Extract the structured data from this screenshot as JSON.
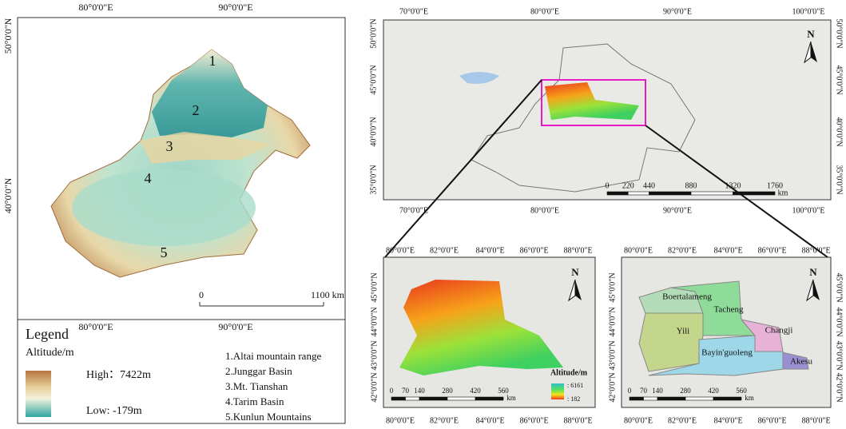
{
  "main_map": {
    "top_lon_labels": [
      "80°0'0\"E",
      "90°0'0\"E"
    ],
    "bottom_lon_labels": [
      "80°0'0\"E",
      "90°0'0\"E"
    ],
    "left_lat_labels": [
      "50°0'0\"N",
      "40°0'0\"N"
    ],
    "region_numbers": [
      "1",
      "2",
      "3",
      "4",
      "5"
    ],
    "scale_start": "0",
    "scale_end": "1100 km"
  },
  "legend": {
    "title": "Legend",
    "subtitle": "Altitude/m",
    "high": "High：7422m",
    "low": "Low: -179m",
    "items": [
      "1.Altai mountain range",
      "2.Junggar Basin",
      "3.Mt. Tianshan",
      "4.Tarim Basin",
      "5.Kunlun Mountains"
    ]
  },
  "overview_map": {
    "north": "N",
    "top_lon_labels": [
      "70°0'0\"E",
      "80°0'0\"E",
      "90°0'0\"E",
      "100°0'0\"E"
    ],
    "bottom_lon_labels": [
      "70°0'0\"E",
      "80°0'0\"E",
      "90°0'0\"E",
      "100°0'0\"E"
    ],
    "left_lat_labels": [
      "50°0'0\"N",
      "45°0'0\"N",
      "40°0'0\"N",
      "35°0'0\"N"
    ],
    "right_lat_labels": [
      "50°0'0\"N",
      "45°0'0\"N",
      "40°0'0\"N",
      "35°0'0\"N"
    ],
    "scale_ticks": [
      0,
      220,
      440,
      880,
      1320,
      1760
    ],
    "scale_unit": "km"
  },
  "altitude_map": {
    "north": "N",
    "top_lon_labels": [
      "80°0'0\"E",
      "82°0'0\"E",
      "84°0'0\"E",
      "86°0'0\"E",
      "88°0'0\"E"
    ],
    "bottom_lon_labels": [
      "80°0'0\"E",
      "82°0'0\"E",
      "84°0'0\"E",
      "86°0'0\"E",
      "88°0'0\"E"
    ],
    "left_lat_labels": [
      "45°0'0\"N",
      "44°0'0\"N",
      "43°0'0\"N",
      "42°0'0\"N"
    ],
    "legend_title": "Altitude/m",
    "legend_high": ": 6161",
    "legend_low": ": 182",
    "scale_ticks": [
      0,
      70,
      140,
      280,
      420,
      560
    ],
    "scale_unit": "km"
  },
  "regions_map": {
    "north": "N",
    "top_lon_labels": [
      "80°0'0\"E",
      "82°0'0\"E",
      "84°0'0\"E",
      "86°0'0\"E",
      "88°0'0\"E"
    ],
    "bottom_lon_labels": [
      "80°0'0\"E",
      "82°0'0\"E",
      "84°0'0\"E",
      "86°0'0\"E",
      "88°0'0\"E"
    ],
    "left_lat_labels": [
      "45°0'0\"N",
      "44°0'0\"N",
      "43°0'0\"N",
      "42°0'0\"N"
    ],
    "right_lat_labels": [
      "45°0'0\"N",
      "44°0'0\"N",
      "43°0'0\"N",
      "42°0'0\"N"
    ],
    "regions": [
      "Boertalameng",
      "Tacheng",
      "Yili",
      "Changji",
      "Akesu",
      "Bayin'guoleng"
    ],
    "scale_ticks": [
      0,
      70,
      140,
      280,
      420,
      560
    ],
    "scale_unit": "km"
  }
}
